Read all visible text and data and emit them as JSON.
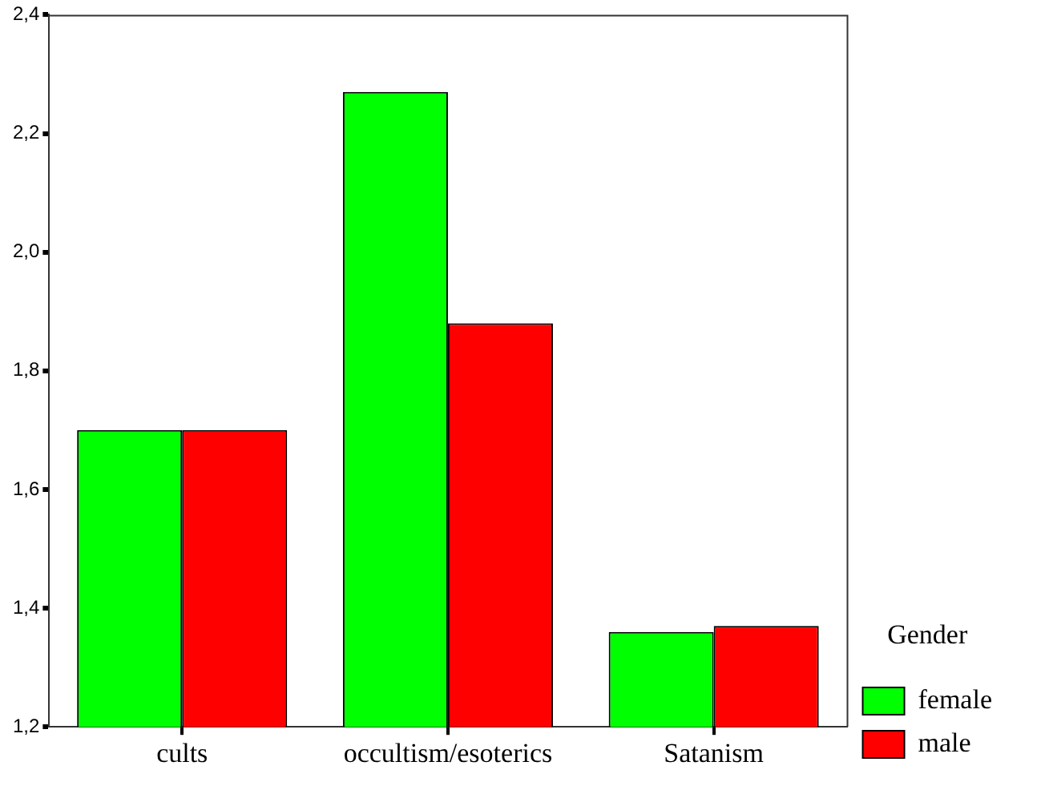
{
  "chart_data": {
    "type": "bar",
    "categories": [
      "cults",
      "occultism/esoterics",
      "Satanism"
    ],
    "series": [
      {
        "name": "female",
        "color": "#00ff00",
        "values": [
          1.7,
          2.27,
          1.36
        ]
      },
      {
        "name": "male",
        "color": "#ff0000",
        "values": [
          1.7,
          1.88,
          1.37
        ]
      }
    ],
    "ylim": [
      1.2,
      2.4
    ],
    "yticks": [
      {
        "value": 1.2,
        "label": "1,2"
      },
      {
        "value": 1.4,
        "label": "1,4"
      },
      {
        "value": 1.6,
        "label": "1,6"
      },
      {
        "value": 1.8,
        "label": "1,8"
      },
      {
        "value": 2.0,
        "label": "2,0"
      },
      {
        "value": 2.2,
        "label": "2,2"
      },
      {
        "value": 2.4,
        "label": "2,4"
      }
    ],
    "legend": "bottom right",
    "legend_title": "Gender"
  }
}
